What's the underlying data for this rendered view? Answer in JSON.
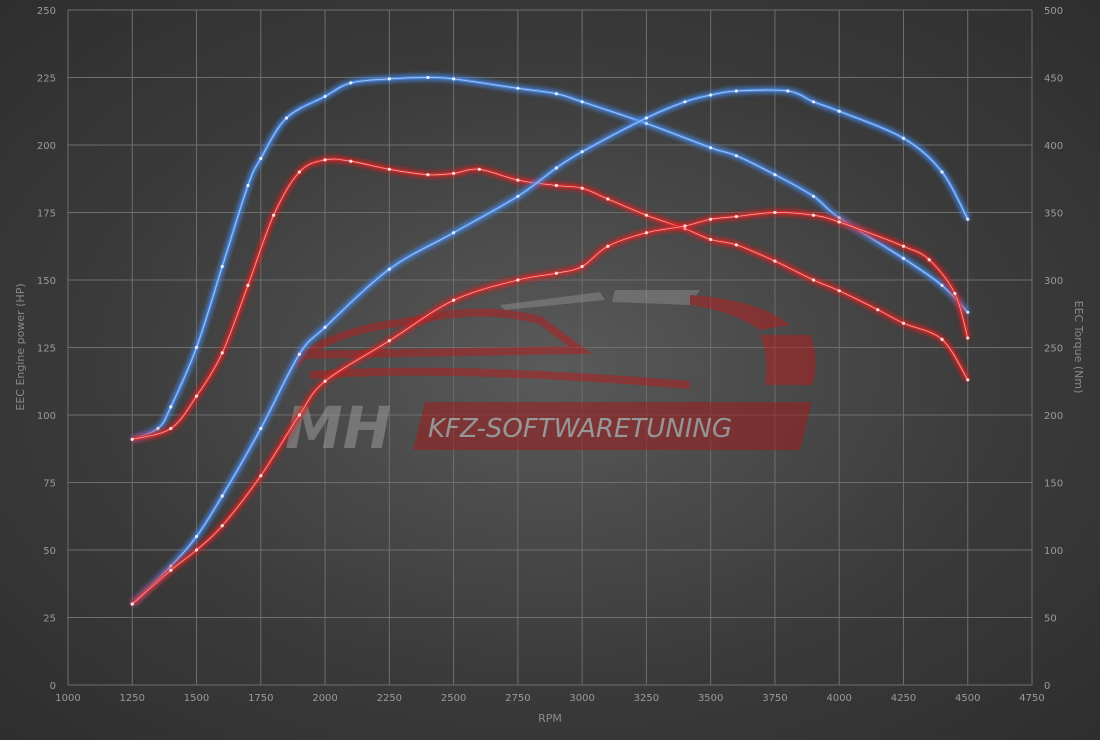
{
  "chart_data": {
    "type": "line",
    "xlabel": "RPM",
    "ylabel_left": "EEC Engine power (HP)",
    "ylabel_right": "EEC Torque (Nm)",
    "xlim": [
      1000,
      4750
    ],
    "xticks": [
      1000,
      1250,
      1500,
      1750,
      2000,
      2250,
      2500,
      2750,
      3000,
      3250,
      3500,
      3750,
      4000,
      4250,
      4500,
      4750
    ],
    "ylim_left": [
      0,
      250
    ],
    "yticks_left": [
      0,
      25,
      50,
      75,
      100,
      125,
      150,
      175,
      200,
      225,
      250
    ],
    "ylim_right": [
      0,
      500
    ],
    "yticks_right": [
      0,
      50,
      100,
      150,
      200,
      250,
      300,
      350,
      400,
      450,
      500
    ],
    "grid": true,
    "colors": {
      "tuned": "#4a8ef0",
      "stock": "#e02828",
      "background": "#3f3f3f"
    },
    "series": [
      {
        "axis": "left",
        "color": "#4a8ef0",
        "x": [
          1250,
          1350,
          1400,
          1500,
          1600,
          1700,
          1750,
          1850,
          2000,
          2100,
          2250,
          2400,
          2500,
          2750,
          2900,
          3000,
          3250,
          3500,
          3600,
          3750,
          3900,
          4000,
          4250,
          4400,
          4500
        ],
        "y": [
          91,
          95,
          103,
          125,
          155,
          185,
          195,
          210,
          218,
          223,
          224.5,
          225,
          224.5,
          221,
          219,
          216,
          208,
          199,
          196,
          189,
          181,
          173,
          158,
          148,
          138
        ]
      },
      {
        "axis": "left",
        "color": "#e02828",
        "x": [
          1250,
          1400,
          1500,
          1600,
          1700,
          1800,
          1900,
          2000,
          2100,
          2250,
          2400,
          2500,
          2600,
          2750,
          2900,
          3000,
          3100,
          3250,
          3400,
          3500,
          3600,
          3750,
          3900,
          4000,
          4150,
          4250,
          4400,
          4500
        ],
        "y": [
          91,
          95,
          107,
          123,
          148,
          174,
          190,
          194.5,
          194,
          191,
          189,
          189.5,
          191,
          187,
          185,
          184,
          180,
          174,
          169,
          165,
          163,
          157,
          150,
          146,
          139,
          134,
          128,
          113
        ]
      },
      {
        "axis": "right",
        "color": "#4a8ef0",
        "x": [
          1250,
          1400,
          1500,
          1600,
          1750,
          1900,
          2000,
          2250,
          2500,
          2750,
          2900,
          3000,
          3250,
          3400,
          3500,
          3600,
          3800,
          3900,
          4000,
          4250,
          4400,
          4500
        ],
        "y": [
          60,
          88,
          110,
          140,
          190,
          245,
          265,
          308,
          335,
          362,
          383,
          395,
          420,
          432,
          437,
          440,
          440,
          432,
          425,
          405,
          380,
          345
        ]
      },
      {
        "axis": "right",
        "color": "#e02828",
        "x": [
          1250,
          1400,
          1500,
          1600,
          1750,
          1900,
          2000,
          2250,
          2500,
          2750,
          2900,
          3000,
          3100,
          3250,
          3400,
          3500,
          3600,
          3750,
          3900,
          4000,
          4250,
          4350,
          4450,
          4500
        ],
        "y": [
          60,
          85,
          100,
          118,
          155,
          200,
          225,
          255,
          285,
          300,
          305,
          310,
          325,
          335,
          340,
          345,
          347,
          350,
          348,
          343,
          325,
          315,
          290,
          257
        ]
      }
    ]
  },
  "watermark": {
    "logo_text_1": "MH",
    "logo_text_2": "KFZ-SOFTWARETUNING"
  }
}
